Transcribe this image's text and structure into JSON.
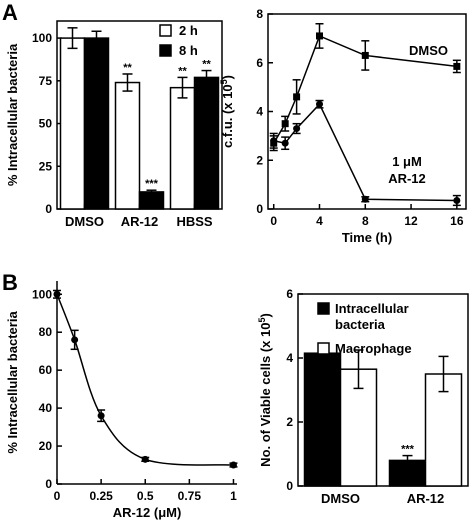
{
  "panels": {
    "A": "A",
    "B": "B"
  },
  "chart_data": [
    {
      "type": "bar",
      "ylabel": "% Intracellular bacteria",
      "ylim": [
        0,
        110
      ],
      "yticks": [
        0,
        25,
        50,
        75,
        100
      ],
      "categories": [
        "DMSO",
        "AR-12",
        "HBSS"
      ],
      "legend_position": "top-right",
      "series": [
        {
          "name": "2 h",
          "color": "#ffffff",
          "values": [
            100,
            74,
            71
          ],
          "errors": [
            6,
            5,
            6
          ]
        },
        {
          "name": "8 h",
          "color": "#000000",
          "values": [
            100,
            10,
            77
          ],
          "errors": [
            4,
            1,
            4
          ]
        }
      ],
      "annotations": [
        {
          "category": 1,
          "series": 0,
          "text": "**"
        },
        {
          "category": 1,
          "series": 1,
          "text": "***"
        },
        {
          "category": 2,
          "series": 0,
          "text": "**"
        },
        {
          "category": 2,
          "series": 1,
          "text": "**"
        }
      ]
    },
    {
      "type": "line",
      "ylabel": "c.f.u. (x 10",
      "ylabel_sup": "5",
      "ylabel_tail": ")",
      "xlabel": "Time (h)",
      "xlim": [
        -0.5,
        16.8
      ],
      "ylim": [
        0,
        8
      ],
      "xticks": [
        0,
        4,
        8,
        12,
        16
      ],
      "yticks": [
        0,
        2,
        4,
        6,
        8
      ],
      "series": [
        {
          "name": "DMSO",
          "marker": "square",
          "x": [
            0,
            1,
            2,
            4,
            8,
            16
          ],
          "y": [
            2.7,
            3.5,
            4.6,
            7.1,
            6.3,
            5.85
          ],
          "errors": [
            0.3,
            0.3,
            0.7,
            0.5,
            0.6,
            0.25
          ]
        },
        {
          "name": "1 μM AR-12",
          "marker": "circle",
          "x": [
            0,
            1,
            2,
            4,
            8,
            16
          ],
          "y": [
            2.8,
            2.7,
            3.3,
            4.3,
            0.4,
            0.35
          ],
          "errors": [
            0.3,
            0.25,
            0.2,
            0.15,
            0.1,
            0.2
          ]
        }
      ],
      "labels": {
        "dmso": "DMSO",
        "ar12_line1": "1 μM",
        "ar12_line2": "AR-12"
      }
    },
    {
      "type": "line",
      "ylabel": "% Intracellular bacteria",
      "xlabel": "AR-12 (μM)",
      "xlim": [
        0,
        1.02
      ],
      "ylim": [
        0,
        107
      ],
      "xticks": [
        "0",
        "0.25",
        "0.5",
        "0.75",
        "1"
      ],
      "xtick_values": [
        0,
        0.25,
        0.5,
        0.75,
        1
      ],
      "yticks": [
        0,
        20,
        40,
        60,
        80,
        100
      ],
      "series": [
        {
          "x": [
            0,
            0.1,
            0.25,
            0.5,
            1
          ],
          "y": [
            100,
            76,
            36,
            13,
            10
          ],
          "errors": [
            2,
            5,
            3,
            1,
            1
          ]
        }
      ]
    },
    {
      "type": "bar",
      "ylabel": "No. of Viable cells (x 10",
      "ylabel_sup": "5",
      "ylabel_tail": ")",
      "ylim": [
        0,
        6
      ],
      "yticks": [
        0,
        2,
        4,
        6
      ],
      "categories": [
        "DMSO",
        "AR-12"
      ],
      "legend_position": "top-right",
      "series": [
        {
          "name": "Intracellular bacteria",
          "legend_line1": "Intracellular",
          "legend_line2": "bacteria",
          "color": "#000000",
          "values": [
            4.15,
            0.8
          ],
          "errors": [
            0.2,
            0.15
          ]
        },
        {
          "name": "Macrophage",
          "legend_line1": "Macrophage",
          "legend_line2": "",
          "color": "#ffffff",
          "values": [
            3.65,
            3.5
          ],
          "errors": [
            0.6,
            0.55
          ]
        }
      ],
      "annotations": [
        {
          "category": 1,
          "series": 0,
          "text": "***"
        }
      ]
    }
  ]
}
